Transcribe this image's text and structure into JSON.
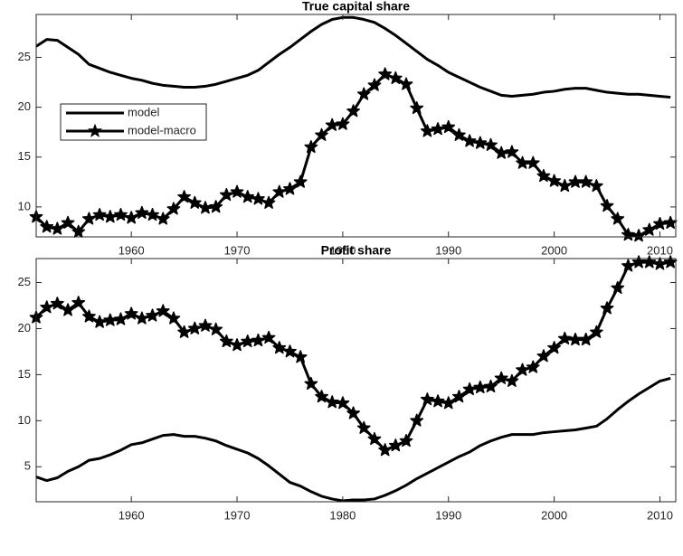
{
  "chart_data": [
    {
      "type": "line",
      "title": "True capital share",
      "x": [
        1951,
        1952,
        1953,
        1954,
        1955,
        1956,
        1957,
        1958,
        1959,
        1960,
        1961,
        1962,
        1963,
        1964,
        1965,
        1966,
        1967,
        1968,
        1969,
        1970,
        1971,
        1972,
        1973,
        1974,
        1975,
        1976,
        1977,
        1978,
        1979,
        1980,
        1981,
        1982,
        1983,
        1984,
        1985,
        1986,
        1987,
        1988,
        1989,
        1990,
        1991,
        1992,
        1993,
        1994,
        1995,
        1996,
        1997,
        1998,
        1999,
        2000,
        2001,
        2002,
        2003,
        2004,
        2005,
        2006,
        2007,
        2008,
        2009,
        2010,
        2011
      ],
      "series": [
        {
          "name": "model",
          "color": "#000000",
          "marker": "none",
          "values": [
            26.1,
            26.8,
            26.7,
            26.0,
            25.3,
            24.3,
            23.9,
            23.5,
            23.2,
            22.9,
            22.7,
            22.4,
            22.2,
            22.1,
            22.0,
            22.0,
            22.1,
            22.3,
            22.6,
            22.9,
            23.2,
            23.7,
            24.5,
            25.3,
            26.0,
            26.8,
            27.6,
            28.3,
            28.8,
            29.0,
            29.0,
            28.8,
            28.5,
            27.9,
            27.2,
            26.4,
            25.6,
            24.8,
            24.2,
            23.5,
            23.0,
            22.5,
            22.0,
            21.6,
            21.2,
            21.1,
            21.2,
            21.3,
            21.5,
            21.6,
            21.8,
            21.9,
            21.9,
            21.7,
            21.5,
            21.4,
            21.3,
            21.3,
            21.2,
            21.1,
            21.0
          ]
        },
        {
          "name": "model-macro",
          "color": "#000000",
          "marker": "star",
          "values": [
            9.0,
            8.0,
            7.8,
            8.4,
            7.5,
            8.8,
            9.2,
            9.0,
            9.2,
            8.9,
            9.4,
            9.2,
            8.8,
            9.8,
            11.0,
            10.4,
            9.9,
            10.0,
            11.2,
            11.5,
            11.0,
            10.8,
            10.4,
            11.5,
            11.8,
            12.5,
            16.0,
            17.2,
            18.2,
            18.3,
            19.6,
            21.3,
            22.2,
            23.3,
            22.9,
            22.3,
            19.9,
            17.6,
            17.8,
            18.0,
            17.2,
            16.6,
            16.4,
            16.2,
            15.4,
            15.5,
            14.4,
            14.4,
            13.1,
            12.6,
            12.1,
            12.5,
            12.5,
            12.1,
            10.1,
            8.8,
            7.2,
            7.1,
            7.7,
            8.3,
            8.4
          ]
        }
      ],
      "xlim": [
        1951,
        2011.5
      ],
      "xticks": [
        1960,
        1970,
        1980,
        1990,
        2000,
        2010
      ],
      "ylim": [
        7,
        29.3
      ],
      "yticks": [
        10,
        15,
        20,
        25
      ],
      "legend": "center left"
    },
    {
      "type": "line",
      "title": "Profit share",
      "x": [
        1951,
        1952,
        1953,
        1954,
        1955,
        1956,
        1957,
        1958,
        1959,
        1960,
        1961,
        1962,
        1963,
        1964,
        1965,
        1966,
        1967,
        1968,
        1969,
        1970,
        1971,
        1972,
        1973,
        1974,
        1975,
        1976,
        1977,
        1978,
        1979,
        1980,
        1981,
        1982,
        1983,
        1984,
        1985,
        1986,
        1987,
        1988,
        1989,
        1990,
        1991,
        1992,
        1993,
        1994,
        1995,
        1996,
        1997,
        1998,
        1999,
        2000,
        2001,
        2002,
        2003,
        2004,
        2005,
        2006,
        2007,
        2008,
        2009,
        2010,
        2011
      ],
      "series": [
        {
          "color": "#000000",
          "marker": "none",
          "values": [
            3.9,
            3.5,
            3.8,
            4.5,
            5.0,
            5.7,
            5.9,
            6.3,
            6.8,
            7.4,
            7.6,
            8.0,
            8.4,
            8.5,
            8.3,
            8.3,
            8.1,
            7.8,
            7.3,
            6.9,
            6.5,
            5.9,
            5.1,
            4.2,
            3.3,
            2.9,
            2.3,
            1.8,
            1.5,
            1.3,
            1.4,
            1.4,
            1.5,
            1.9,
            2.4,
            3.0,
            3.7,
            4.3,
            4.9,
            5.5,
            6.1,
            6.6,
            7.3,
            7.8,
            8.2,
            8.5,
            8.5,
            8.5,
            8.7,
            8.8,
            8.9,
            9.0,
            9.2,
            9.4,
            10.2,
            11.2,
            12.1,
            12.9,
            13.6,
            14.3,
            14.6
          ]
        },
        {
          "color": "#000000",
          "marker": "star",
          "values": [
            21.2,
            22.3,
            22.7,
            22.0,
            22.8,
            21.3,
            20.7,
            20.9,
            21.0,
            21.6,
            21.1,
            21.4,
            21.9,
            21.1,
            19.6,
            20.0,
            20.3,
            19.9,
            18.6,
            18.2,
            18.6,
            18.7,
            19.0,
            17.9,
            17.5,
            16.9,
            14.0,
            12.6,
            12.0,
            11.9,
            10.8,
            9.2,
            8.0,
            6.8,
            7.3,
            7.8,
            10.0,
            12.3,
            12.1,
            11.9,
            12.6,
            13.4,
            13.6,
            13.7,
            14.6,
            14.3,
            15.5,
            15.8,
            17.0,
            17.9,
            18.9,
            18.8,
            18.8,
            19.6,
            22.2,
            24.4,
            26.8,
            27.2,
            27.2,
            27.0,
            27.2
          ]
        }
      ],
      "xlim": [
        1951,
        2011.5
      ],
      "xticks": [
        1960,
        1970,
        1980,
        1990,
        2000,
        2010
      ],
      "ylim": [
        1.2,
        27.6
      ],
      "yticks": [
        5,
        10,
        15,
        20,
        25
      ]
    }
  ]
}
